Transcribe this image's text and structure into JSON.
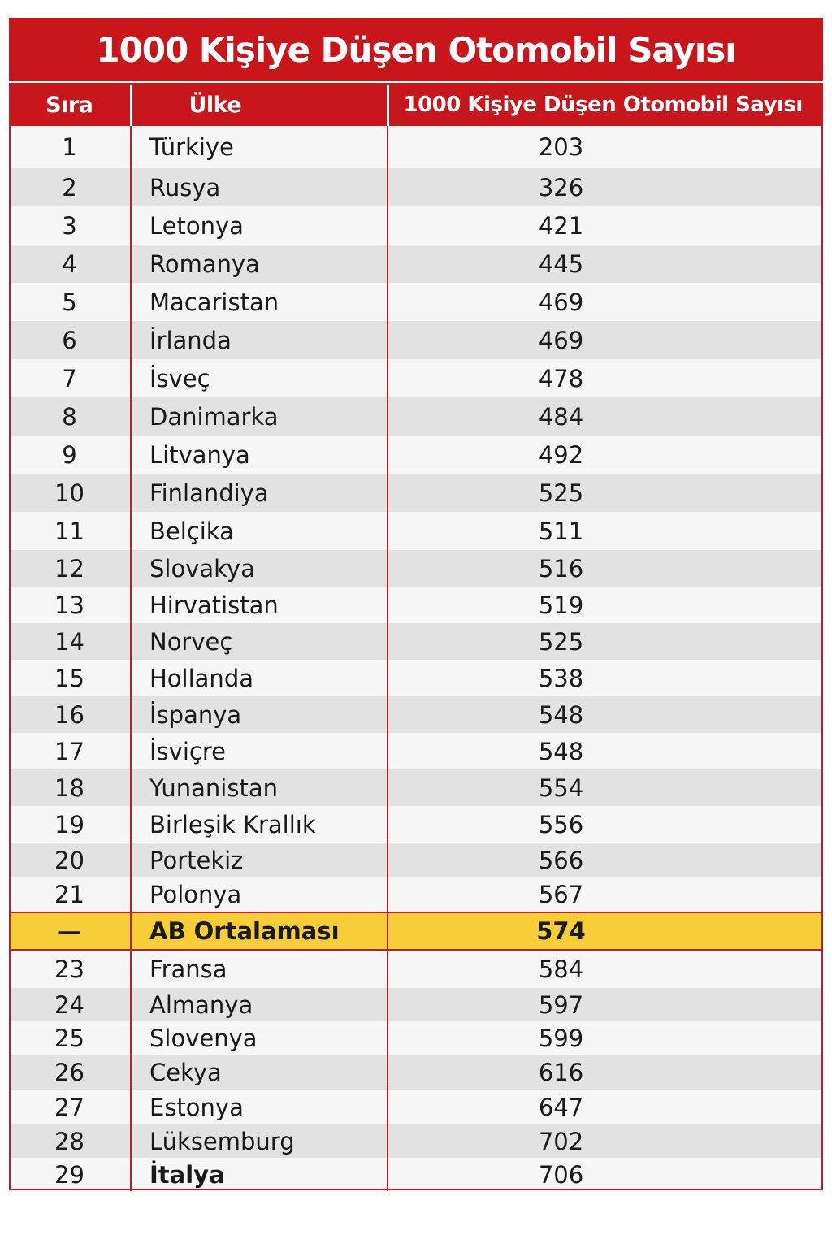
{
  "title": "1000 Kişiye Düşen Otomobil Sayısı",
  "columns": [
    "Sıra",
    "Ülke",
    "1000 Kişiye Düşen Otomobil Sayısı"
  ],
  "colors": {
    "header_red": "#c8161b",
    "highlight_yellow": "#f6cd37"
  },
  "rows": [
    [
      "1",
      "Türkiye",
      "203"
    ],
    [
      "2",
      "Rusya",
      "326"
    ],
    [
      "3",
      "Letonya",
      "421"
    ],
    [
      "4",
      "Romanya",
      "445"
    ],
    [
      "5",
      "Macaristan",
      "469"
    ],
    [
      "6",
      "İrlanda",
      "469"
    ],
    [
      "7",
      "İsveç",
      "478"
    ],
    [
      "8",
      "Danimarka",
      "484"
    ],
    [
      "9",
      "Litvanya",
      "492"
    ],
    [
      "10",
      "Finlandiya",
      "525"
    ],
    [
      "11",
      "Belçika",
      "511"
    ],
    [
      "12",
      "Slovakya",
      "516"
    ],
    [
      "13",
      "Hirvatistan",
      "519"
    ],
    [
      "14",
      "Norveç",
      "525"
    ],
    [
      "15",
      "Hollanda",
      "538"
    ],
    [
      "16",
      "İspanya",
      "548"
    ],
    [
      "17",
      "İsviçre",
      "548"
    ],
    [
      "18",
      "Yunanistan",
      "554"
    ],
    [
      "19",
      "Birleşik Krallık",
      "556"
    ],
    [
      "20",
      "Portekiz",
      "566"
    ],
    [
      "21",
      "Polonya",
      "567"
    ],
    [
      "—",
      "AB Ortalaması",
      "574"
    ],
    [
      "23",
      "Fransa",
      "584"
    ],
    [
      "24",
      "Almanya",
      "597"
    ],
    [
      "25",
      "Slovenya",
      "599"
    ],
    [
      "26",
      "Cekya",
      "616"
    ],
    [
      "27",
      "Estonya",
      "647"
    ],
    [
      "28",
      "Lüksemburg",
      "702"
    ],
    [
      "29",
      "İtalya",
      "706"
    ]
  ],
  "highlight_row": 21,
  "bold_name_rows": [
    28
  ]
}
